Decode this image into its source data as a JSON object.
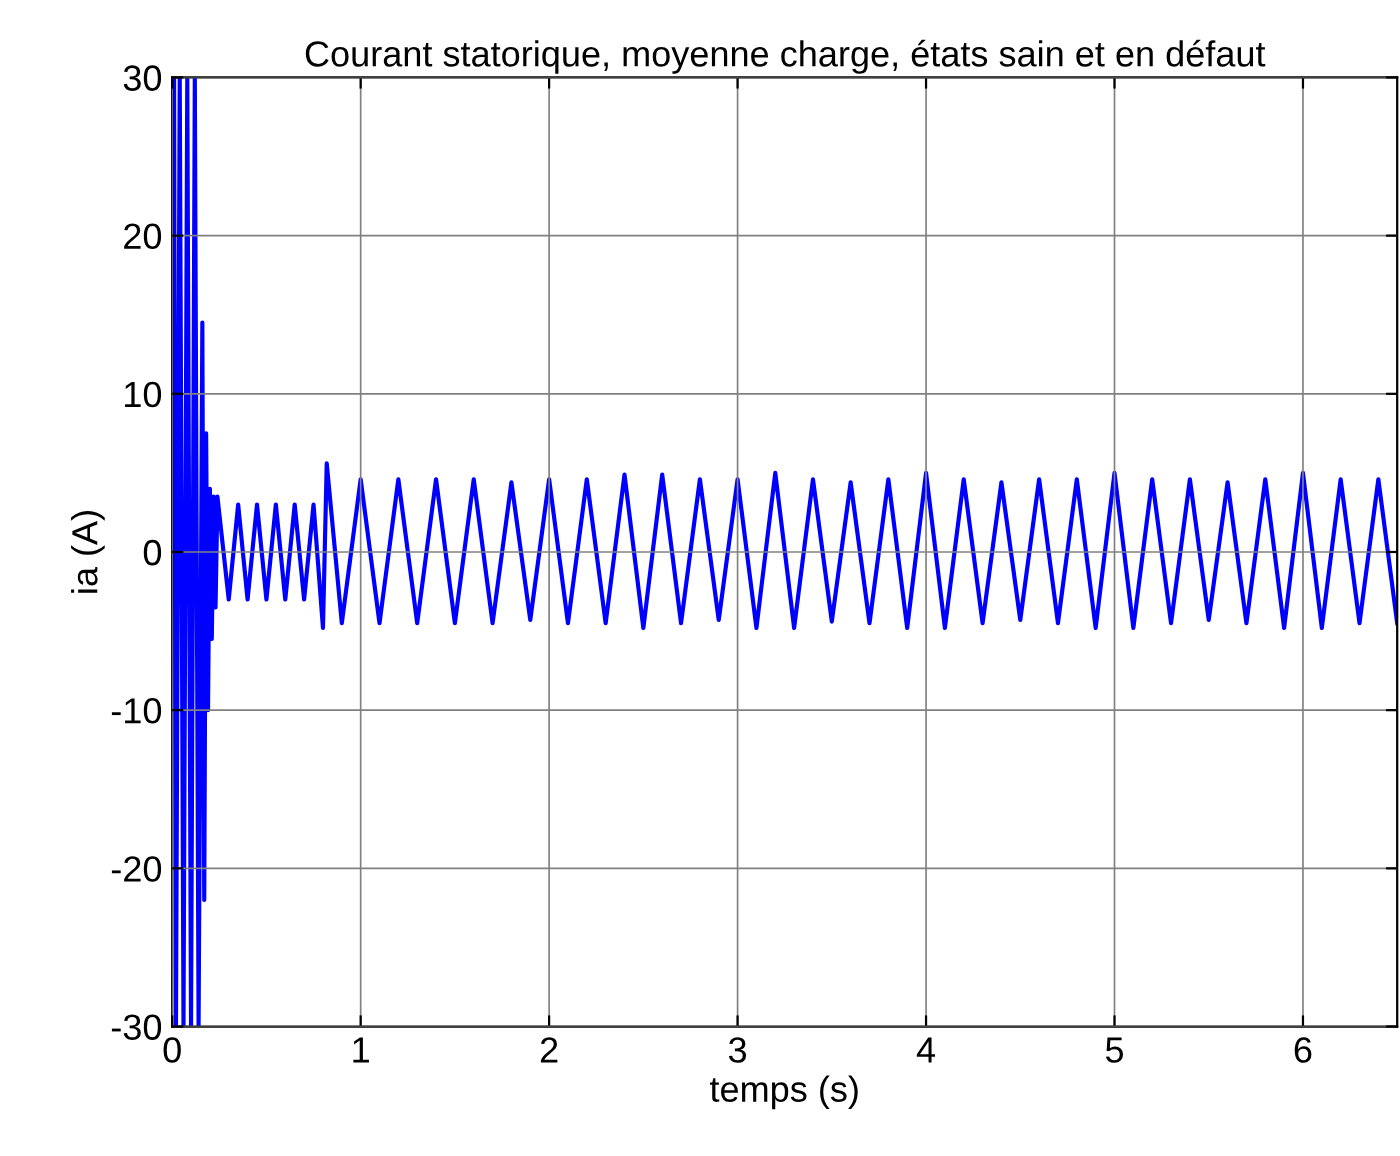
{
  "chart_data": {
    "type": "line",
    "title": "Courant statorique, moyenne charge, états sain et en défaut",
    "xlabel": "temps (s)",
    "ylabel": "ia (A)",
    "xlim": [
      0,
      6.5
    ],
    "xticks": [
      0,
      1,
      2,
      3,
      4,
      5,
      6
    ],
    "ylim": [
      -30,
      30
    ],
    "yticks": [
      -30,
      -20,
      -10,
      0,
      10,
      20,
      30
    ],
    "grid": true,
    "marker": "none",
    "line_style": "solid",
    "series": [
      {
        "color": "#0000ff",
        "x": [
          0,
          0.01,
          0.02,
          0.04,
          0.06,
          0.08,
          0.1,
          0.12,
          0.14,
          0.16,
          0.17,
          0.18,
          0.19,
          0.2,
          0.21,
          0.22,
          0.23,
          0.24,
          0.3,
          0.35,
          0.4,
          0.45,
          0.5,
          0.55,
          0.6,
          0.65,
          0.7,
          0.75,
          0.8,
          0.82,
          0.9,
          1.0,
          1.1,
          1.2,
          1.3,
          1.4,
          1.5,
          1.6,
          1.7,
          1.8,
          1.9,
          2.0,
          2.1,
          2.2,
          2.3,
          2.4,
          2.5,
          2.6,
          2.7,
          2.8,
          2.9,
          3.0,
          3.1,
          3.2,
          3.3,
          3.4,
          3.5,
          3.6,
          3.7,
          3.8,
          3.9,
          4.0,
          4.1,
          4.2,
          4.3,
          4.4,
          4.5,
          4.6,
          4.7,
          4.8,
          4.9,
          5.0,
          5.1,
          5.2,
          5.3,
          5.4,
          5.5,
          5.6,
          5.7,
          5.8,
          5.9,
          6.0,
          6.1,
          6.2,
          6.3,
          6.4,
          6.5
        ],
        "values": [
          0,
          30,
          -30,
          30,
          -30,
          30,
          -30,
          30,
          -30,
          14.5,
          -22,
          7.5,
          -10,
          4,
          -5.5,
          3.5,
          -3.5,
          3.5,
          -3,
          3,
          -3,
          3,
          -3,
          3,
          -3,
          3,
          -3,
          3,
          -4.8,
          5.6,
          -4.5,
          4.6,
          -4.5,
          4.6,
          -4.5,
          4.6,
          -4.5,
          4.6,
          -4.5,
          4.4,
          -4.3,
          4.6,
          -4.5,
          4.6,
          -4.5,
          4.9,
          -4.8,
          4.9,
          -4.5,
          4.6,
          -4.3,
          4.6,
          -4.8,
          5.0,
          -4.8,
          4.6,
          -4.4,
          4.4,
          -4.5,
          4.6,
          -4.8,
          5.0,
          -4.8,
          4.6,
          -4.5,
          4.4,
          -4.3,
          4.6,
          -4.5,
          4.6,
          -4.8,
          5.0,
          -4.8,
          4.6,
          -4.5,
          4.6,
          -4.3,
          4.4,
          -4.5,
          4.6,
          -4.8,
          5.0,
          -4.8,
          4.6,
          -4.5,
          4.6,
          -4.5
        ]
      }
    ]
  }
}
